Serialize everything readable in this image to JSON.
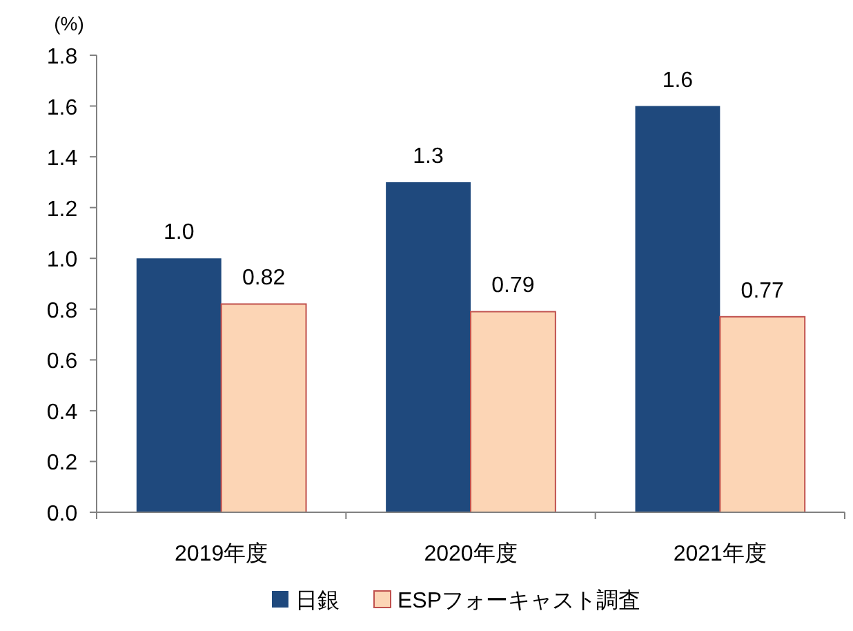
{
  "chart_data": {
    "type": "bar",
    "ylabel": "(%)",
    "categories": [
      "2019年度",
      "2020年度",
      "2021年度"
    ],
    "series": [
      {
        "name": "日銀",
        "color": "#1f497d",
        "values": [
          1.0,
          1.3,
          1.6
        ],
        "value_labels": [
          "1.0",
          "1.3",
          "1.6"
        ]
      },
      {
        "name": "ESPフォーキャスト調査",
        "color": "#fcd5b5",
        "values": [
          0.82,
          0.79,
          0.77
        ],
        "value_labels": [
          "0.82",
          "0.79",
          "0.77"
        ]
      }
    ],
    "ylim": [
      0,
      1.8
    ],
    "yticks": [
      {
        "value": 0,
        "label": "0.0"
      },
      {
        "value": 0.2,
        "label": "0.2"
      },
      {
        "value": 0.4,
        "label": "0.4"
      },
      {
        "value": 0.6,
        "label": "0.6"
      },
      {
        "value": 0.8,
        "label": "0.8"
      },
      {
        "value": 1.0,
        "label": "1.0"
      },
      {
        "value": 1.2,
        "label": "1.2"
      },
      {
        "value": 1.4,
        "label": "1.4"
      },
      {
        "value": 1.6,
        "label": "1.6"
      },
      {
        "value": 1.8,
        "label": "1.8"
      }
    ],
    "legend": "bottom",
    "grid": false
  }
}
